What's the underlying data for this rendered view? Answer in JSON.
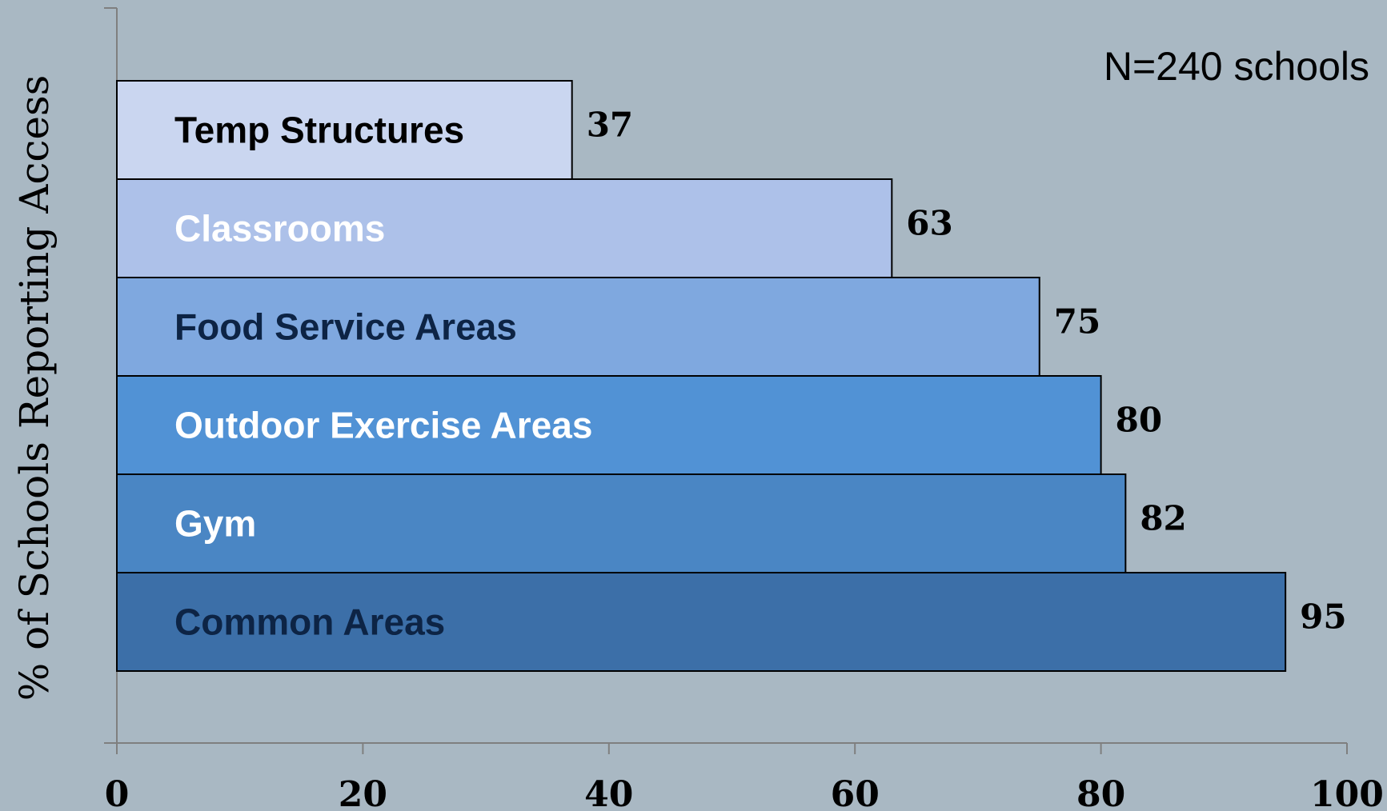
{
  "chart_data": {
    "type": "bar",
    "orientation": "horizontal",
    "categories": [
      "Temp Structures",
      "Classrooms",
      "Food Service Areas",
      "Outdoor Exercise Areas",
      "Gym",
      "Common Areas"
    ],
    "values": [
      37,
      63,
      75,
      80,
      82,
      95
    ],
    "title": "",
    "xlabel": "",
    "ylabel": "% of Schools Reporting Access",
    "annotation": "N=240 schools",
    "xlim": [
      0,
      100
    ],
    "xticks": [
      "0",
      "20",
      "40",
      "60",
      "80",
      "100"
    ],
    "grid": false,
    "legend": "none",
    "colors": {
      "background": "#a9b8c3",
      "bars": [
        "#cad6f0",
        "#adc1e9",
        "#7fa8df",
        "#5192d5",
        "#4a86c4",
        "#3c6fa8"
      ],
      "category_label_colors": [
        "#000000",
        "#ffffff",
        "#0d2445",
        "#ffffff",
        "#ffffff",
        "#0d2445"
      ],
      "axis": "#7f7f7f"
    }
  }
}
